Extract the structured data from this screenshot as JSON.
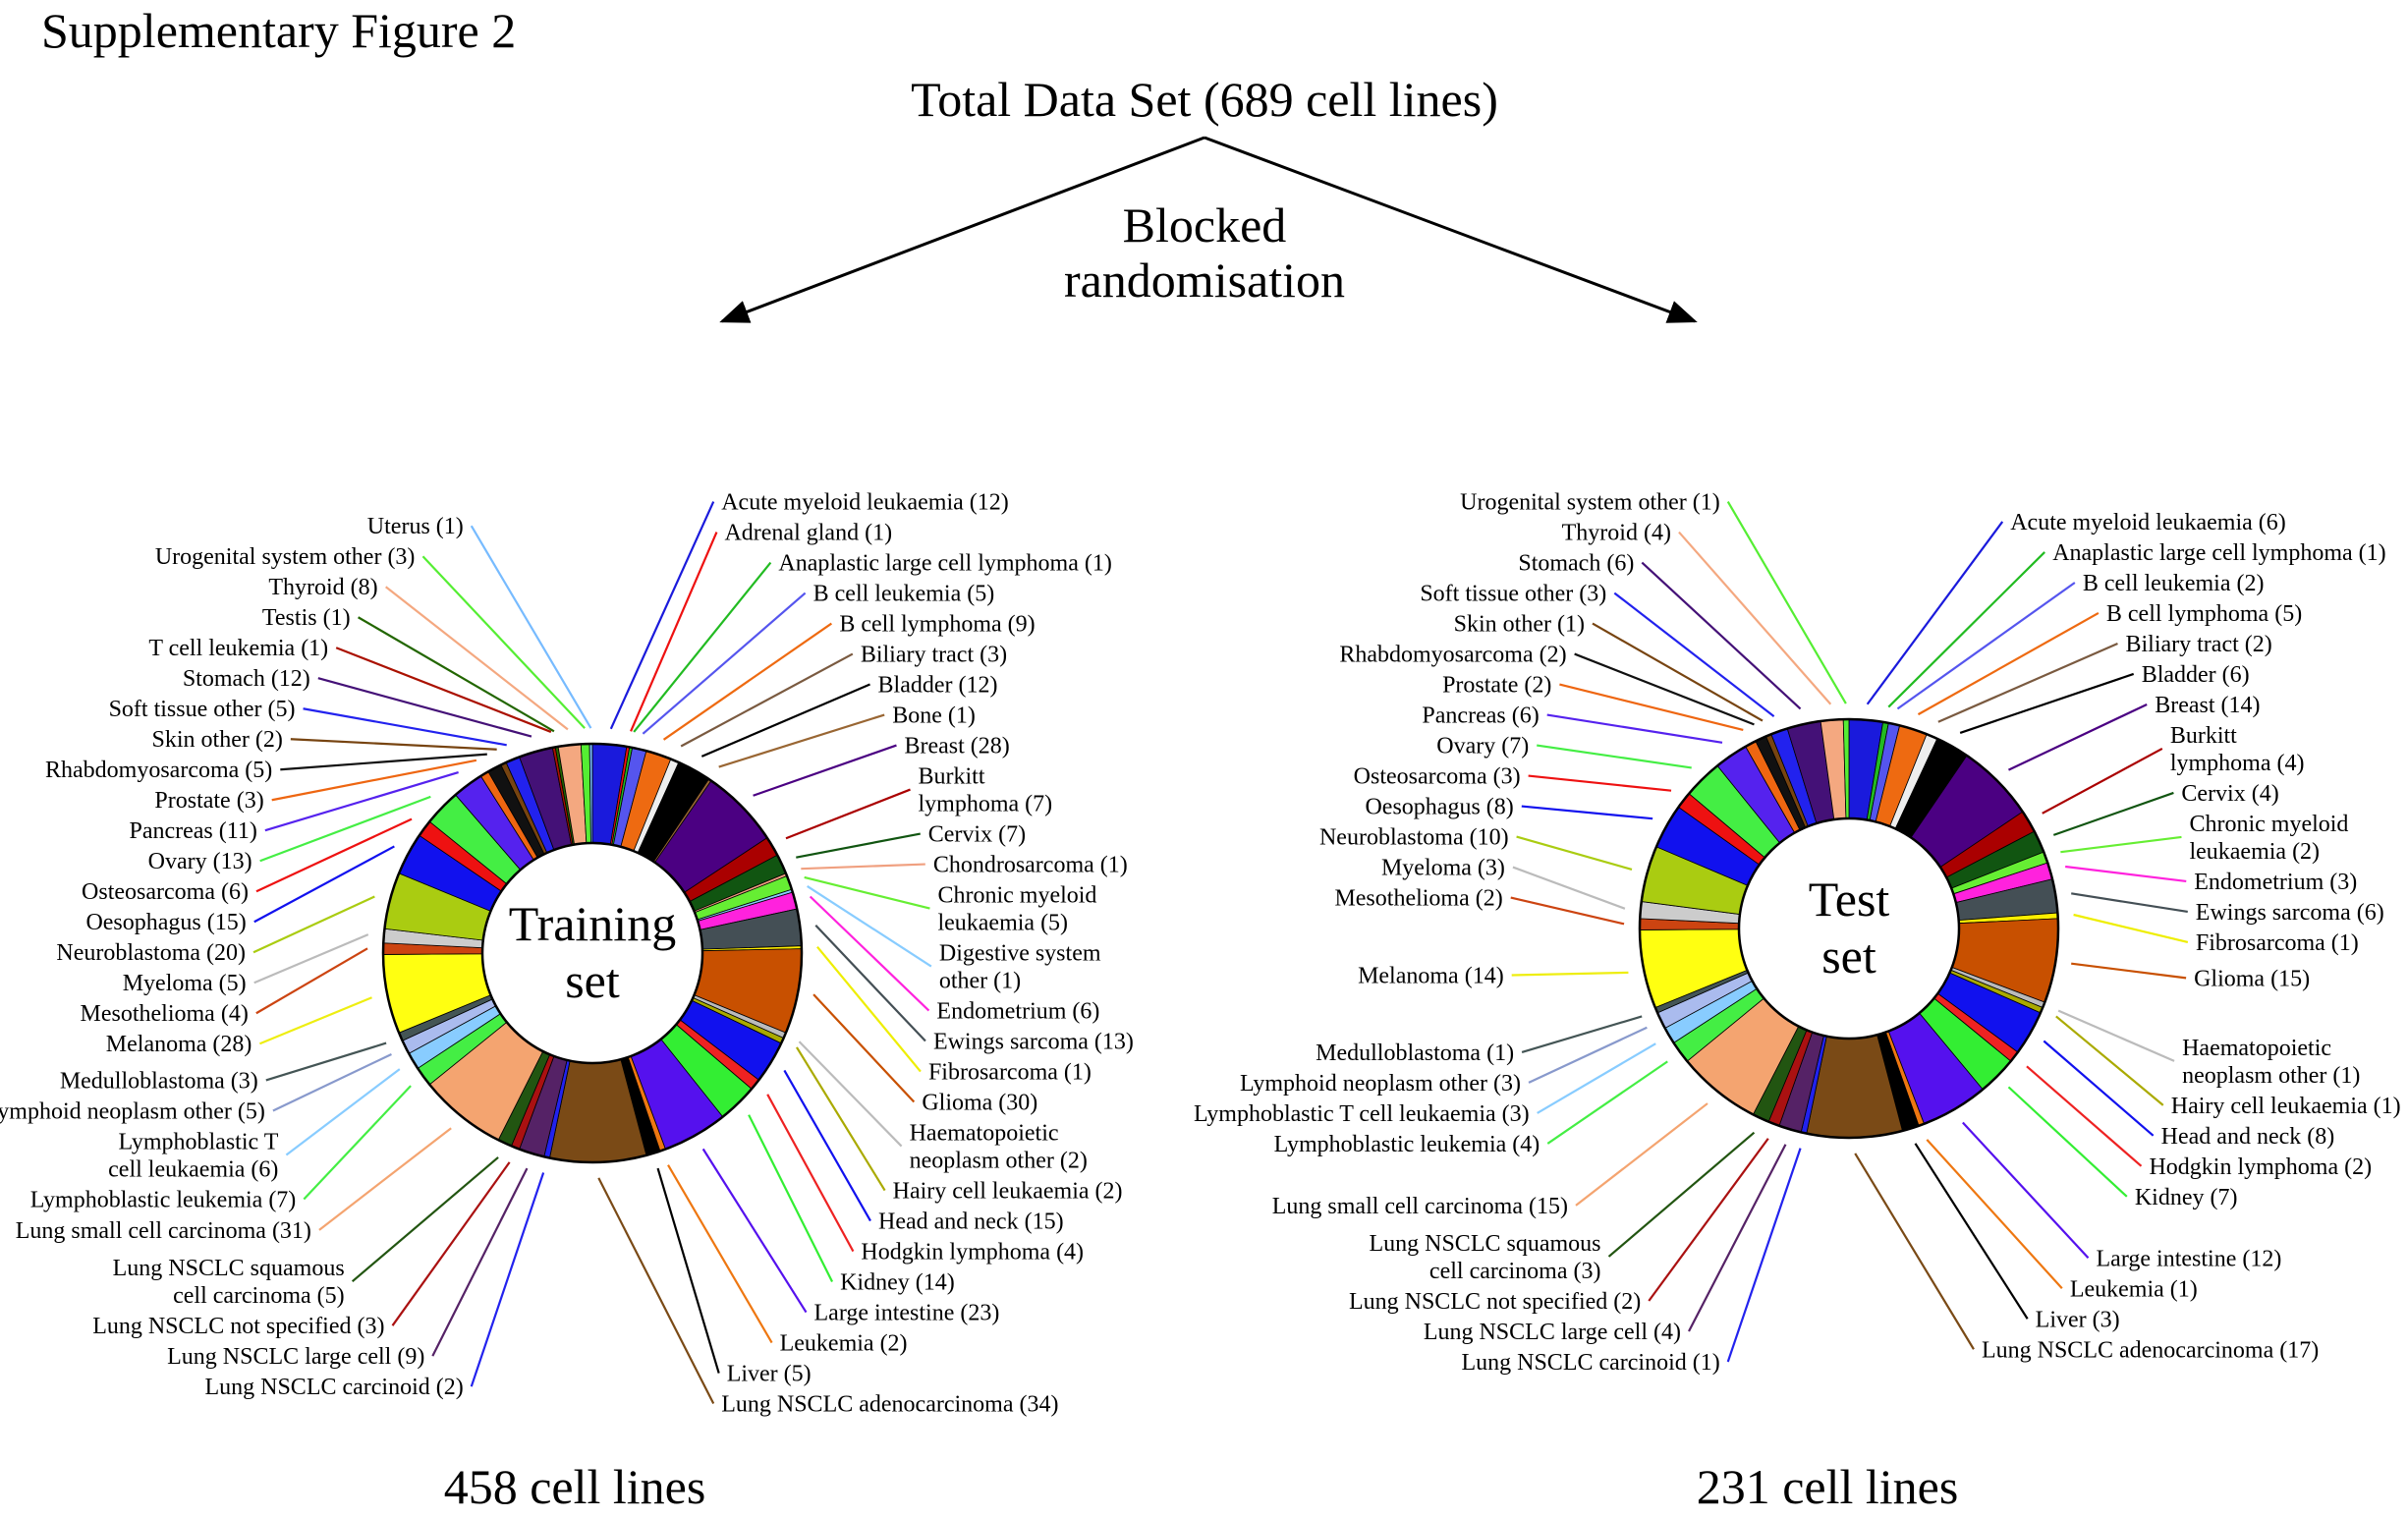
{
  "figure": {
    "label": "Supplementary Figure 2",
    "top": "Total Data Set (689 cell lines)",
    "method_lines": [
      "Blocked",
      "randomisation"
    ]
  },
  "chart_data": [
    {
      "type": "pie",
      "center_label": [
        "Training",
        "set"
      ],
      "total_text": "458 cell lines",
      "total": 458,
      "categories": [
        "Acute myeloid leukaemia",
        "Adrenal gland",
        "Anaplastic large cell lymphoma",
        "B cell leukemia",
        "B cell lymphoma",
        "Biliary tract",
        "Bladder",
        "Bone",
        "Breast",
        "Burkitt lymphoma",
        "Cervix",
        "Chondrosarcoma",
        "Chronic myeloid leukaemia",
        "Digestive system other",
        "Endometrium",
        "Ewings sarcoma",
        "Fibrosarcoma",
        "Glioma",
        "Haematopoietic neoplasm other",
        "Hairy cell leukaemia",
        "Head and neck",
        "Hodgkin lymphoma",
        "Kidney",
        "Large intestine",
        "Leukemia",
        "Liver",
        "Lung NSCLC adenocarcinoma",
        "Lung NSCLC carcinoid",
        "Lung NSCLC large cell",
        "Lung NSCLC not specified",
        "Lung NSCLC squamous cell carcinoma",
        "Lung small cell carcinoma",
        "Lymphoblastic leukemia",
        "Lymphoblastic T cell leukaemia",
        "Lymphoid neoplasm other",
        "Medulloblastoma",
        "Melanoma",
        "Mesothelioma",
        "Myeloma",
        "Neuroblastoma",
        "Oesophagus",
        "Osteosarcoma",
        "Ovary",
        "Pancreas",
        "Prostate",
        "Rhabdomyosarcoma",
        "Skin other",
        "Soft tissue other",
        "Stomach",
        "T cell leukemia",
        "Testis",
        "Thyroid",
        "Urogenital system other",
        "Uterus"
      ],
      "values": [
        12,
        1,
        1,
        5,
        9,
        3,
        12,
        1,
        28,
        7,
        7,
        1,
        5,
        1,
        6,
        13,
        1,
        30,
        2,
        2,
        15,
        4,
        14,
        23,
        2,
        5,
        34,
        2,
        9,
        3,
        5,
        31,
        7,
        6,
        5,
        3,
        28,
        4,
        5,
        20,
        15,
        6,
        13,
        11,
        3,
        5,
        2,
        5,
        12,
        1,
        1,
        8,
        3,
        1
      ],
      "labels": [
        [
          "Acute myeloid leukaemia  (12)"
        ],
        [
          "Adrenal gland (1)"
        ],
        [
          "Anaplastic large cell lymphoma (1)"
        ],
        [
          "B cell leukemia (5)"
        ],
        [
          "B cell lymphoma (9)"
        ],
        [
          "Biliary tract (3)"
        ],
        [
          "Bladder (12)"
        ],
        [
          "Bone (1)"
        ],
        [
          "Breast (28)"
        ],
        [
          "Burkitt",
          "lymphoma (7)"
        ],
        [
          "Cervix (7)"
        ],
        [
          "Chondrosarcoma (1)"
        ],
        [
          "Chronic myeloid",
          "leukaemia (5)"
        ],
        [
          "Digestive system",
          "other (1)"
        ],
        [
          "Endometrium (6)"
        ],
        [
          "Ewings sarcoma (13)"
        ],
        [
          "Fibrosarcoma (1)"
        ],
        [
          "Glioma (30)"
        ],
        [
          "Haematopoietic",
          "neoplasm other (2)"
        ],
        [
          "Hairy cell leukaemia (2)"
        ],
        [
          "Head and neck (15)"
        ],
        [
          "Hodgkin lymphoma (4)"
        ],
        [
          "Kidney (14)"
        ],
        [
          "Large intestine (23)"
        ],
        [
          "Leukemia (2)"
        ],
        [
          "Liver (5)"
        ],
        [
          "Lung NSCLC adenocarcinoma (34)"
        ],
        [
          "Lung NSCLC carcinoid (2)"
        ],
        [
          "Lung NSCLC large cell (9)"
        ],
        [
          "Lung NSCLC not specified (3)"
        ],
        [
          "Lung NSCLC squamous",
          "cell carcinoma (5)"
        ],
        [
          "Lung small cell carcinoma (31)"
        ],
        [
          "Lymphoblastic leukemia (7)"
        ],
        [
          "Lymphoblastic T",
          "cell leukaemia (6)"
        ],
        [
          "Lymphoid neoplasm other (5)"
        ],
        [
          "Medulloblastoma (3)"
        ],
        [
          "Melanoma (28)"
        ],
        [
          "Mesothelioma (4)"
        ],
        [
          "Myeloma (5)"
        ],
        [
          "Neuroblastoma (20)"
        ],
        [
          "Oesophagus (15)"
        ],
        [
          "Osteosarcoma (6)"
        ],
        [
          "Ovary (13)"
        ],
        [
          "Pancreas (11)"
        ],
        [
          "Prostate (3)"
        ],
        [
          "Rhabdomyosarcoma (5)"
        ],
        [
          "Skin other (2)"
        ],
        [
          "Soft tissue other (5)"
        ],
        [
          "Stomach (12)"
        ],
        [
          "T cell leukemia (1)"
        ],
        [
          "Testis (1)"
        ],
        [
          "Thyroid (8)"
        ],
        [
          "Urogenital system other (3)"
        ],
        [
          "Uterus (1)"
        ]
      ],
      "colors": [
        "#1a1adc",
        "#ee1111",
        "#22bb22",
        "#5555ee",
        "#ee6a11",
        "#eeeeee",
        "#000000",
        "#996633",
        "#4b0082",
        "#aa0000",
        "#115511",
        "#f0a080",
        "#66ee33",
        "#88ccff",
        "#ff22dd",
        "#444f55",
        "#ffee00",
        "#c85000",
        "#bbbbbb",
        "#aaaa00",
        "#1111ee",
        "#ee2222",
        "#33ee33",
        "#5511ee",
        "#ee7711",
        "#000000",
        "#7a4a16",
        "#2222ee",
        "#552266",
        "#aa1111",
        "#225511",
        "#f4a470",
        "#44ee44",
        "#88ccff",
        "#aabbee",
        "#445555",
        "#ffff11",
        "#cc4411",
        "#cccccc",
        "#aacc11",
        "#1111ee",
        "#ee1111",
        "#44ee44",
        "#5522ee",
        "#ee6611",
        "#111111",
        "#774411",
        "#2222ee",
        "#441177",
        "#aa1100",
        "#226600",
        "#f4a880",
        "#55ee33",
        "#77bbff"
      ],
      "line_colors": [
        "#1a1adc",
        "#ee1111",
        "#22bb22",
        "#5555ee",
        "#ee6a11",
        "#7a5a40",
        "#000000",
        "#996633",
        "#4b0082",
        "#aa0000",
        "#115511",
        "#f0a080",
        "#66ee33",
        "#88ccff",
        "#ff22dd",
        "#444f55",
        "#eeee00",
        "#c85000",
        "#bbbbbb",
        "#aaaa00",
        "#1111ee",
        "#ee2222",
        "#33ee33",
        "#5511ee",
        "#ee7711",
        "#000000",
        "#7a4a16",
        "#2222ee",
        "#552266",
        "#aa1111",
        "#225511",
        "#f4a470",
        "#44ee44",
        "#88ccff",
        "#8899cc",
        "#445555",
        "#eeee11",
        "#cc4411",
        "#bbbbbb",
        "#aacc11",
        "#1111ee",
        "#ee1111",
        "#44ee44",
        "#5522ee",
        "#ee6611",
        "#111111",
        "#774411",
        "#2222ee",
        "#441177",
        "#aa1100",
        "#226600",
        "#f4a880",
        "#55ee33",
        "#77bbff"
      ]
    },
    {
      "type": "pie",
      "center_label": [
        "Test",
        "set"
      ],
      "total_text": "231 cell lines",
      "total": 231,
      "categories": [
        "Acute myeloid leukaemia",
        "Anaplastic large cell lymphoma",
        "B cell leukemia",
        "B cell lymphoma",
        "Biliary tract",
        "Bladder",
        "Breast",
        "Burkitt lymphoma",
        "Cervix",
        "Chronic myeloid leukaemia",
        "Endometrium",
        "Ewings sarcoma",
        "Fibrosarcoma",
        "Glioma",
        "Haematopoietic neoplasm other",
        "Hairy cell leukaemia",
        "Head and neck",
        "Hodgkin lymphoma",
        "Kidney",
        "Large intestine",
        "Leukemia",
        "Liver",
        "Lung NSCLC adenocarcinoma",
        "Lung NSCLC carcinoid",
        "Lung NSCLC large cell",
        "Lung NSCLC not specified",
        "Lung NSCLC squamous cell carcinoma",
        "Lung small cell carcinoma",
        "Lymphoblastic leukemia",
        "Lymphoblastic T cell leukaemia",
        "Lymphoid neoplasm other",
        "Medulloblastoma",
        "Melanoma",
        "Mesothelioma",
        "Myeloma",
        "Neuroblastoma",
        "Oesophagus",
        "Osteosarcoma",
        "Ovary",
        "Pancreas",
        "Prostate",
        "Rhabdomyosarcoma",
        "Skin other",
        "Soft tissue other",
        "Stomach",
        "Thyroid",
        "Urogenital system other"
      ],
      "values": [
        6,
        1,
        2,
        5,
        2,
        6,
        14,
        4,
        4,
        2,
        3,
        6,
        1,
        15,
        1,
        1,
        8,
        2,
        7,
        12,
        1,
        3,
        17,
        1,
        4,
        2,
        3,
        15,
        4,
        3,
        3,
        1,
        14,
        2,
        3,
        10,
        8,
        3,
        7,
        6,
        2,
        2,
        1,
        3,
        6,
        4,
        1
      ],
      "labels": [
        [
          "Acute myeloid leukaemia  (6)"
        ],
        [
          "Anaplastic large cell lymphoma (1)"
        ],
        [
          "B cell leukemia (2)"
        ],
        [
          "B cell lymphoma (5)"
        ],
        [
          "Biliary tract (2)"
        ],
        [
          "Bladder (6)"
        ],
        [
          "Breast (14)"
        ],
        [
          "Burkitt",
          "lymphoma (4)"
        ],
        [
          "Cervix (4)"
        ],
        [
          "Chronic myeloid",
          "leukaemia (2)"
        ],
        [
          "Endometrium (3)"
        ],
        [
          "Ewings sarcoma (6)"
        ],
        [
          "Fibrosarcoma (1)"
        ],
        [
          "Glioma (15)"
        ],
        [
          "Haematopoietic",
          "neoplasm other (1)"
        ],
        [
          "Hairy cell leukaemia (1)"
        ],
        [
          "Head and neck (8)"
        ],
        [
          "Hodgkin lymphoma (2)"
        ],
        [
          "Kidney (7)"
        ],
        [
          "Large intestine (12)"
        ],
        [
          "Leukemia (1)"
        ],
        [
          "Liver (3)"
        ],
        [
          "Lung NSCLC adenocarcinoma (17)"
        ],
        [
          "Lung NSCLC carcinoid (1)"
        ],
        [
          "Lung NSCLC large cell (4)"
        ],
        [
          "Lung NSCLC not specified (2)"
        ],
        [
          "Lung NSCLC squamous",
          "cell carcinoma (3)"
        ],
        [
          "Lung small cell carcinoma (15)"
        ],
        [
          "Lymphoblastic leukemia (4)"
        ],
        [
          "Lymphoblastic T cell leukaemia (3)"
        ],
        [
          "Lymphoid neoplasm other (3)"
        ],
        [
          "Medulloblastoma (1)"
        ],
        [
          "Melanoma (14)"
        ],
        [
          "Mesothelioma (2)"
        ],
        [
          "Myeloma (3)"
        ],
        [
          "Neuroblastoma (10)"
        ],
        [
          "Oesophagus (8)"
        ],
        [
          "Osteosarcoma (3)"
        ],
        [
          "Ovary (7)"
        ],
        [
          "Pancreas (6)"
        ],
        [
          "Prostate (2)"
        ],
        [
          "Rhabdomyosarcoma (2)"
        ],
        [
          "Skin other (1)"
        ],
        [
          "Soft tissue other (3)"
        ],
        [
          "Stomach (6)"
        ],
        [
          "Thyroid (4)"
        ],
        [
          "Urogenital system other (1)"
        ]
      ],
      "colors": [
        "#1a1adc",
        "#22bb22",
        "#5555ee",
        "#ee6a11",
        "#eeeeee",
        "#000000",
        "#4b0082",
        "#aa0000",
        "#115511",
        "#66ee33",
        "#ff22dd",
        "#444f55",
        "#ffee00",
        "#c85000",
        "#bbbbbb",
        "#aaaa00",
        "#1111ee",
        "#ee2222",
        "#33ee33",
        "#5511ee",
        "#ee7711",
        "#000000",
        "#7a4a16",
        "#2222ee",
        "#552266",
        "#aa1111",
        "#225511",
        "#f4a470",
        "#44ee44",
        "#88ccff",
        "#aabbee",
        "#445555",
        "#ffff11",
        "#cc4411",
        "#cccccc",
        "#aacc11",
        "#1111ee",
        "#ee1111",
        "#44ee44",
        "#5522ee",
        "#ee6611",
        "#111111",
        "#774411",
        "#2222ee",
        "#441177",
        "#f4a880",
        "#55ee33"
      ],
      "line_colors": [
        "#1a1adc",
        "#22bb22",
        "#5555ee",
        "#ee6a11",
        "#7a5a40",
        "#000000",
        "#4b0082",
        "#aa0000",
        "#115511",
        "#66ee33",
        "#ff22dd",
        "#444f55",
        "#eeee00",
        "#c85000",
        "#bbbbbb",
        "#aaaa00",
        "#1111ee",
        "#ee2222",
        "#33ee33",
        "#5511ee",
        "#ee7711",
        "#000000",
        "#7a4a16",
        "#2222ee",
        "#552266",
        "#aa1111",
        "#225511",
        "#f4a470",
        "#44ee44",
        "#88ccff",
        "#8899cc",
        "#445555",
        "#eeee11",
        "#cc4411",
        "#bbbbbb",
        "#aacc11",
        "#1111ee",
        "#ee1111",
        "#44ee44",
        "#5522ee",
        "#ee6611",
        "#111111",
        "#774411",
        "#2222ee",
        "#441177",
        "#f4a880",
        "#55ee33"
      ]
    }
  ]
}
